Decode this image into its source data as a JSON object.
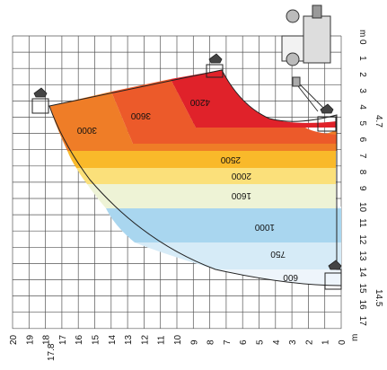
{
  "chart_data": {
    "type": "load_chart",
    "x_axis": {
      "unit": "m",
      "ticks": [
        "20",
        "19",
        "18",
        "17",
        "16",
        "15",
        "14",
        "13",
        "12",
        "11",
        "10",
        "9",
        "8",
        "7",
        "6",
        "5",
        "4",
        "3",
        "2",
        "1",
        "0"
      ],
      "extra": "17.8"
    },
    "y_axis": {
      "unit": "m",
      "ticks": [
        "0",
        "1",
        "2",
        "3",
        "4",
        "5",
        "6",
        "7",
        "8",
        "9",
        "10",
        "11",
        "12",
        "13",
        "14",
        "15",
        "16",
        "17"
      ],
      "extra_top": "4.7",
      "extra_bottom": "14.5"
    },
    "zones": [
      {
        "label": "4200",
        "color": "#e0222a"
      },
      {
        "label": "3600",
        "color": "#ec5a2a"
      },
      {
        "label": "3000",
        "color": "#ef7d27"
      },
      {
        "label": "2500",
        "color": "#f9b92a"
      },
      {
        "label": "2000",
        "color": "#fbe07a"
      },
      {
        "label": "1600",
        "color": "#eef3d6"
      },
      {
        "label": "1000",
        "color": "#a9d6ef"
      },
      {
        "label": "750",
        "color": "#d6ebf7"
      },
      {
        "label": "600",
        "color": "#eef5fb"
      }
    ]
  }
}
